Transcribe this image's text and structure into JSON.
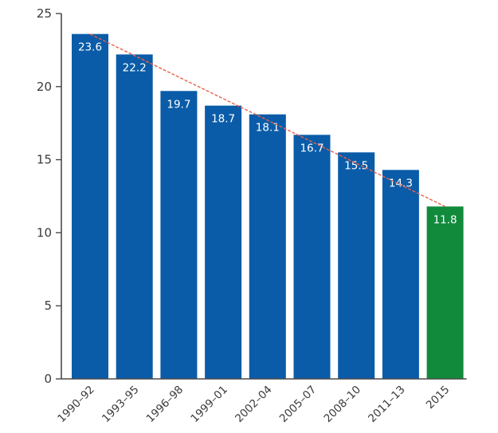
{
  "chart_data": {
    "type": "bar",
    "title": "",
    "xlabel": "",
    "ylabel": "",
    "categories": [
      "1990–92",
      "1993–95",
      "1996–98",
      "1999–01",
      "2002–04",
      "2005–07",
      "2008–10",
      "2011–13",
      "2015"
    ],
    "values": [
      23.6,
      22.2,
      19.7,
      18.7,
      18.1,
      16.7,
      15.5,
      14.3,
      11.8
    ],
    "data_labels": [
      "23.6",
      "22.2",
      "19.7",
      "18.7",
      "18.1",
      "16.7",
      "15.5",
      "14.3",
      "11.8"
    ],
    "ylim": [
      0,
      25
    ],
    "yticks": [
      0,
      5,
      10,
      15,
      20,
      25
    ],
    "ytick_labels": [
      "0",
      "5",
      "10",
      "15",
      "20",
      "25"
    ],
    "grid": false,
    "colors": {
      "bar": "#0a5ca8",
      "highlight_bar": "#118a3c",
      "trend_line": "#e8604c",
      "axis": "#4a4a4a"
    },
    "highlight_index": 8,
    "trend_line": {
      "from_category": "1990–92",
      "from_value": 23.6,
      "to_category": "2015",
      "to_value": 11.8
    }
  }
}
